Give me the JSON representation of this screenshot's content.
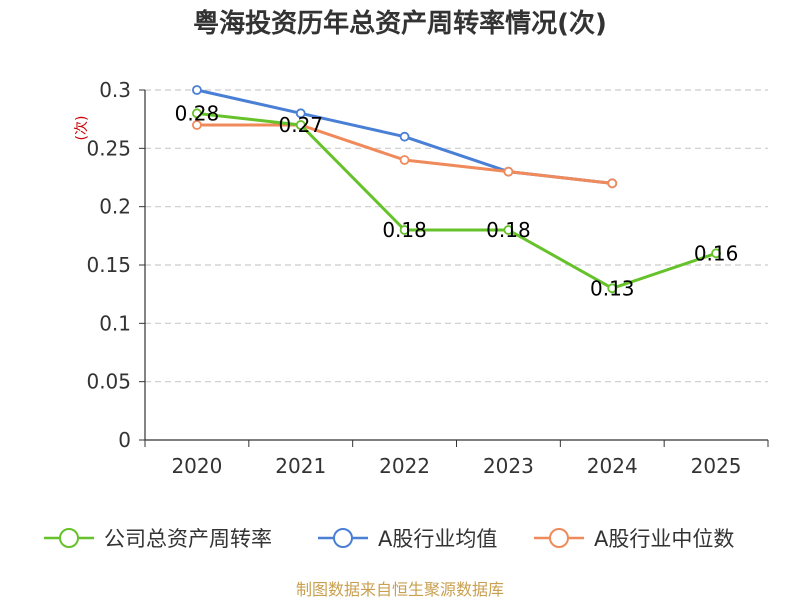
{
  "chart_data": {
    "type": "line",
    "title": "粤海投资历年总资产周转率情况(次)",
    "ylabel": "(次)",
    "xlabel": "",
    "categories": [
      "2020",
      "2021",
      "2022",
      "2023",
      "2024",
      "2025"
    ],
    "ylim": [
      0,
      0.3
    ],
    "yticks": [
      "0",
      "0.05",
      "0.1",
      "0.15",
      "0.2",
      "0.25",
      "0.3"
    ],
    "grid": true,
    "legend_position": "bottom",
    "series": [
      {
        "name": "公司总资产周转率",
        "color": "#66c22a",
        "values": [
          0.28,
          0.27,
          0.18,
          0.18,
          0.13,
          0.16
        ],
        "labels": [
          "0.28",
          "0.27",
          "0.18",
          "0.18",
          "0.13",
          "0.16"
        ]
      },
      {
        "name": "A股行业均值",
        "color": "#4a7fd6",
        "values": [
          0.3,
          0.28,
          0.26,
          0.23,
          0.22,
          null
        ],
        "labels": null
      },
      {
        "name": "A股行业中位数",
        "color": "#f08a5a",
        "values": [
          0.27,
          0.27,
          0.24,
          0.23,
          0.22,
          null
        ],
        "labels": null
      }
    ],
    "source": "制图数据来自恒生聚源数据库"
  }
}
